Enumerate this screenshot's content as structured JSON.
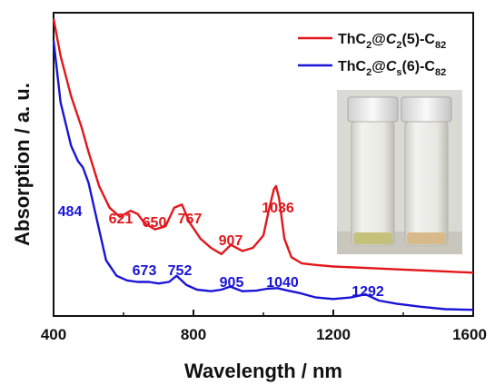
{
  "chart_data": {
    "type": "line",
    "xlabel": "Wavelength / nm",
    "ylabel": "Absorption / a. u.",
    "xlim": [
      400,
      1600
    ],
    "ylim": [
      0,
      1
    ],
    "x_ticks": [
      400,
      800,
      1200,
      1600
    ],
    "y_ticks_shown": false,
    "grid": false,
    "legend_position": "top-right",
    "inset": "photo of two vials of solution (left: pale yellow-green, right: pale brown)",
    "series": [
      {
        "name_parts": {
          "base": "ThC",
          "sub1": "2",
          "mid": "@",
          "ital": "C",
          "sub2": "2",
          "tail": "(5)-C",
          "sub3": "82"
        },
        "color": "#e3161b",
        "x": [
          400,
          420,
          450,
          480,
          500,
          530,
          560,
          590,
          620,
          640,
          660,
          690,
          720,
          745,
          767,
          790,
          820,
          850,
          880,
          907,
          940,
          970,
          1000,
          1015,
          1030,
          1036,
          1045,
          1060,
          1080,
          1110,
          1150,
          1200,
          1300,
          1400,
          1500,
          1600
        ],
        "y": [
          0.95,
          0.83,
          0.7,
          0.6,
          0.52,
          0.41,
          0.34,
          0.31,
          0.33,
          0.32,
          0.29,
          0.27,
          0.28,
          0.34,
          0.35,
          0.29,
          0.24,
          0.21,
          0.19,
          0.22,
          0.2,
          0.21,
          0.25,
          0.33,
          0.4,
          0.41,
          0.37,
          0.24,
          0.18,
          0.16,
          0.155,
          0.15,
          0.145,
          0.14,
          0.135,
          0.13
        ],
        "annotations": [
          {
            "x": 621,
            "label": "621"
          },
          {
            "x": 650,
            "label": "650"
          },
          {
            "x": 767,
            "label": "767"
          },
          {
            "x": 907,
            "label": "907"
          },
          {
            "x": 1036,
            "label": "1036"
          }
        ]
      },
      {
        "name_parts": {
          "base": "ThC",
          "sub1": "2",
          "mid": "@",
          "ital": "C",
          "sub2": "s",
          "tail": "(6)-C",
          "sub3": "82"
        },
        "color": "#1a14d6",
        "x": [
          400,
          420,
          450,
          470,
          484,
          500,
          520,
          550,
          580,
          610,
          640,
          673,
          700,
          730,
          752,
          780,
          810,
          850,
          880,
          905,
          940,
          980,
          1010,
          1040,
          1070,
          1100,
          1150,
          1200,
          1250,
          1292,
          1330,
          1380,
          1450,
          1520,
          1600
        ],
        "y": [
          0.88,
          0.68,
          0.54,
          0.49,
          0.47,
          0.42,
          0.32,
          0.17,
          0.12,
          0.105,
          0.1,
          0.1,
          0.095,
          0.1,
          0.12,
          0.09,
          0.075,
          0.07,
          0.075,
          0.085,
          0.07,
          0.072,
          0.078,
          0.08,
          0.072,
          0.065,
          0.05,
          0.045,
          0.05,
          0.06,
          0.04,
          0.03,
          0.02,
          0.012,
          0.01
        ],
        "annotations": [
          {
            "x": 484,
            "label": "484"
          },
          {
            "x": 673,
            "label": "673"
          },
          {
            "x": 752,
            "label": "752"
          },
          {
            "x": 905,
            "label": "905"
          },
          {
            "x": 1040,
            "label": "1040"
          },
          {
            "x": 1292,
            "label": "1292"
          }
        ]
      }
    ]
  }
}
